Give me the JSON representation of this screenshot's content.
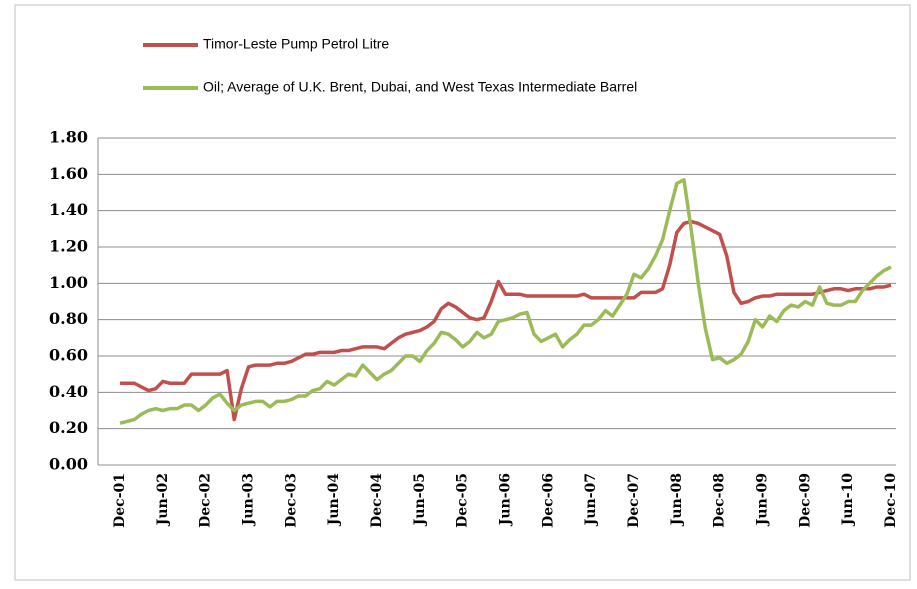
{
  "chart_data": {
    "type": "line",
    "categories": [
      "Dec-01",
      null,
      null,
      null,
      null,
      null,
      "Jun-02",
      null,
      null,
      null,
      null,
      null,
      "Dec-02",
      null,
      null,
      null,
      null,
      null,
      "Jun-03",
      null,
      null,
      null,
      null,
      null,
      "Dec-03",
      null,
      null,
      null,
      null,
      null,
      "Jun-04",
      null,
      null,
      null,
      null,
      null,
      "Dec-04",
      null,
      null,
      null,
      null,
      null,
      "Jun-05",
      null,
      null,
      null,
      null,
      null,
      "Dec-05",
      null,
      null,
      null,
      null,
      null,
      "Jun-06",
      null,
      null,
      null,
      null,
      null,
      "Dec-06",
      null,
      null,
      null,
      null,
      null,
      "Jun-07",
      null,
      null,
      null,
      null,
      null,
      "Dec-07",
      null,
      null,
      null,
      null,
      null,
      "Jun-08",
      null,
      null,
      null,
      null,
      null,
      "Dec-08",
      null,
      null,
      null,
      null,
      null,
      "Jun-09",
      null,
      null,
      null,
      null,
      null,
      "Dec-09",
      null,
      null,
      null,
      null,
      null,
      "Jun-10",
      null,
      null,
      null,
      null,
      null,
      "Dec-10"
    ],
    "series": [
      {
        "name": "Timor-Leste Pump Petrol Litre",
        "color": "#c0504d",
        "values": [
          0.45,
          0.45,
          0.45,
          0.43,
          0.41,
          0.42,
          0.46,
          0.45,
          0.45,
          0.45,
          0.5,
          0.5,
          0.5,
          0.5,
          0.5,
          0.52,
          0.25,
          0.42,
          0.54,
          0.55,
          0.55,
          0.55,
          0.56,
          0.56,
          0.57,
          0.59,
          0.61,
          0.61,
          0.62,
          0.62,
          0.62,
          0.63,
          0.63,
          0.64,
          0.65,
          0.65,
          0.65,
          0.64,
          0.67,
          0.7,
          0.72,
          0.73,
          0.74,
          0.76,
          0.79,
          0.86,
          0.89,
          0.87,
          0.84,
          0.81,
          0.8,
          0.81,
          0.9,
          1.01,
          0.94,
          0.94,
          0.94,
          0.93,
          0.93,
          0.93,
          0.93,
          0.93,
          0.93,
          0.93,
          0.93,
          0.94,
          0.92,
          0.92,
          0.92,
          0.92,
          0.92,
          0.92,
          0.92,
          0.95,
          0.95,
          0.95,
          0.97,
          1.1,
          1.28,
          1.33,
          1.34,
          1.33,
          1.31,
          1.29,
          1.27,
          1.15,
          0.95,
          0.89,
          0.9,
          0.92,
          0.93,
          0.93,
          0.94,
          0.94,
          0.94,
          0.94,
          0.94,
          0.94,
          0.95,
          0.96,
          0.97,
          0.97,
          0.96,
          0.97,
          0.97,
          0.97,
          0.98,
          0.98,
          0.99
        ]
      },
      {
        "name": "Oil; Average of U.K. Brent, Dubai, and West Texas Intermediate Barrel",
        "color": "#9bbb59",
        "values": [
          0.23,
          0.24,
          0.25,
          0.28,
          0.3,
          0.31,
          0.3,
          0.31,
          0.31,
          0.33,
          0.33,
          0.3,
          0.33,
          0.37,
          0.39,
          0.34,
          0.3,
          0.33,
          0.34,
          0.35,
          0.35,
          0.32,
          0.35,
          0.35,
          0.36,
          0.38,
          0.38,
          0.41,
          0.42,
          0.46,
          0.44,
          0.47,
          0.5,
          0.49,
          0.55,
          0.51,
          0.47,
          0.5,
          0.52,
          0.56,
          0.6,
          0.6,
          0.57,
          0.63,
          0.67,
          0.73,
          0.72,
          0.69,
          0.65,
          0.68,
          0.73,
          0.7,
          0.72,
          0.79,
          0.8,
          0.81,
          0.83,
          0.84,
          0.72,
          0.68,
          0.7,
          0.72,
          0.65,
          0.69,
          0.72,
          0.77,
          0.77,
          0.8,
          0.85,
          0.82,
          0.88,
          0.94,
          1.05,
          1.03,
          1.08,
          1.15,
          1.24,
          1.4,
          1.55,
          1.57,
          1.3,
          1.0,
          0.75,
          0.58,
          0.59,
          0.56,
          0.58,
          0.61,
          0.68,
          0.8,
          0.76,
          0.82,
          0.79,
          0.85,
          0.88,
          0.87,
          0.9,
          0.88,
          0.98,
          0.89,
          0.88,
          0.88,
          0.9,
          0.9,
          0.96,
          1.0,
          1.04,
          1.07,
          1.09
        ]
      }
    ],
    "ylim": [
      0,
      1.8
    ],
    "yticks": [
      {
        "value": 0,
        "label": "0.00"
      },
      {
        "value": 0.2,
        "label": "0.20"
      },
      {
        "value": 0.4,
        "label": "0.40"
      },
      {
        "value": 0.6,
        "label": "0.60"
      },
      {
        "value": 0.8,
        "label": "0.80"
      },
      {
        "value": 1,
        "label": "1.00"
      },
      {
        "value": 1.2,
        "label": "1.20"
      },
      {
        "value": 1.4,
        "label": "1.40"
      },
      {
        "value": 1.6,
        "label": "1.60"
      },
      {
        "value": 1.8,
        "label": "1.80"
      }
    ],
    "grid": true
  }
}
